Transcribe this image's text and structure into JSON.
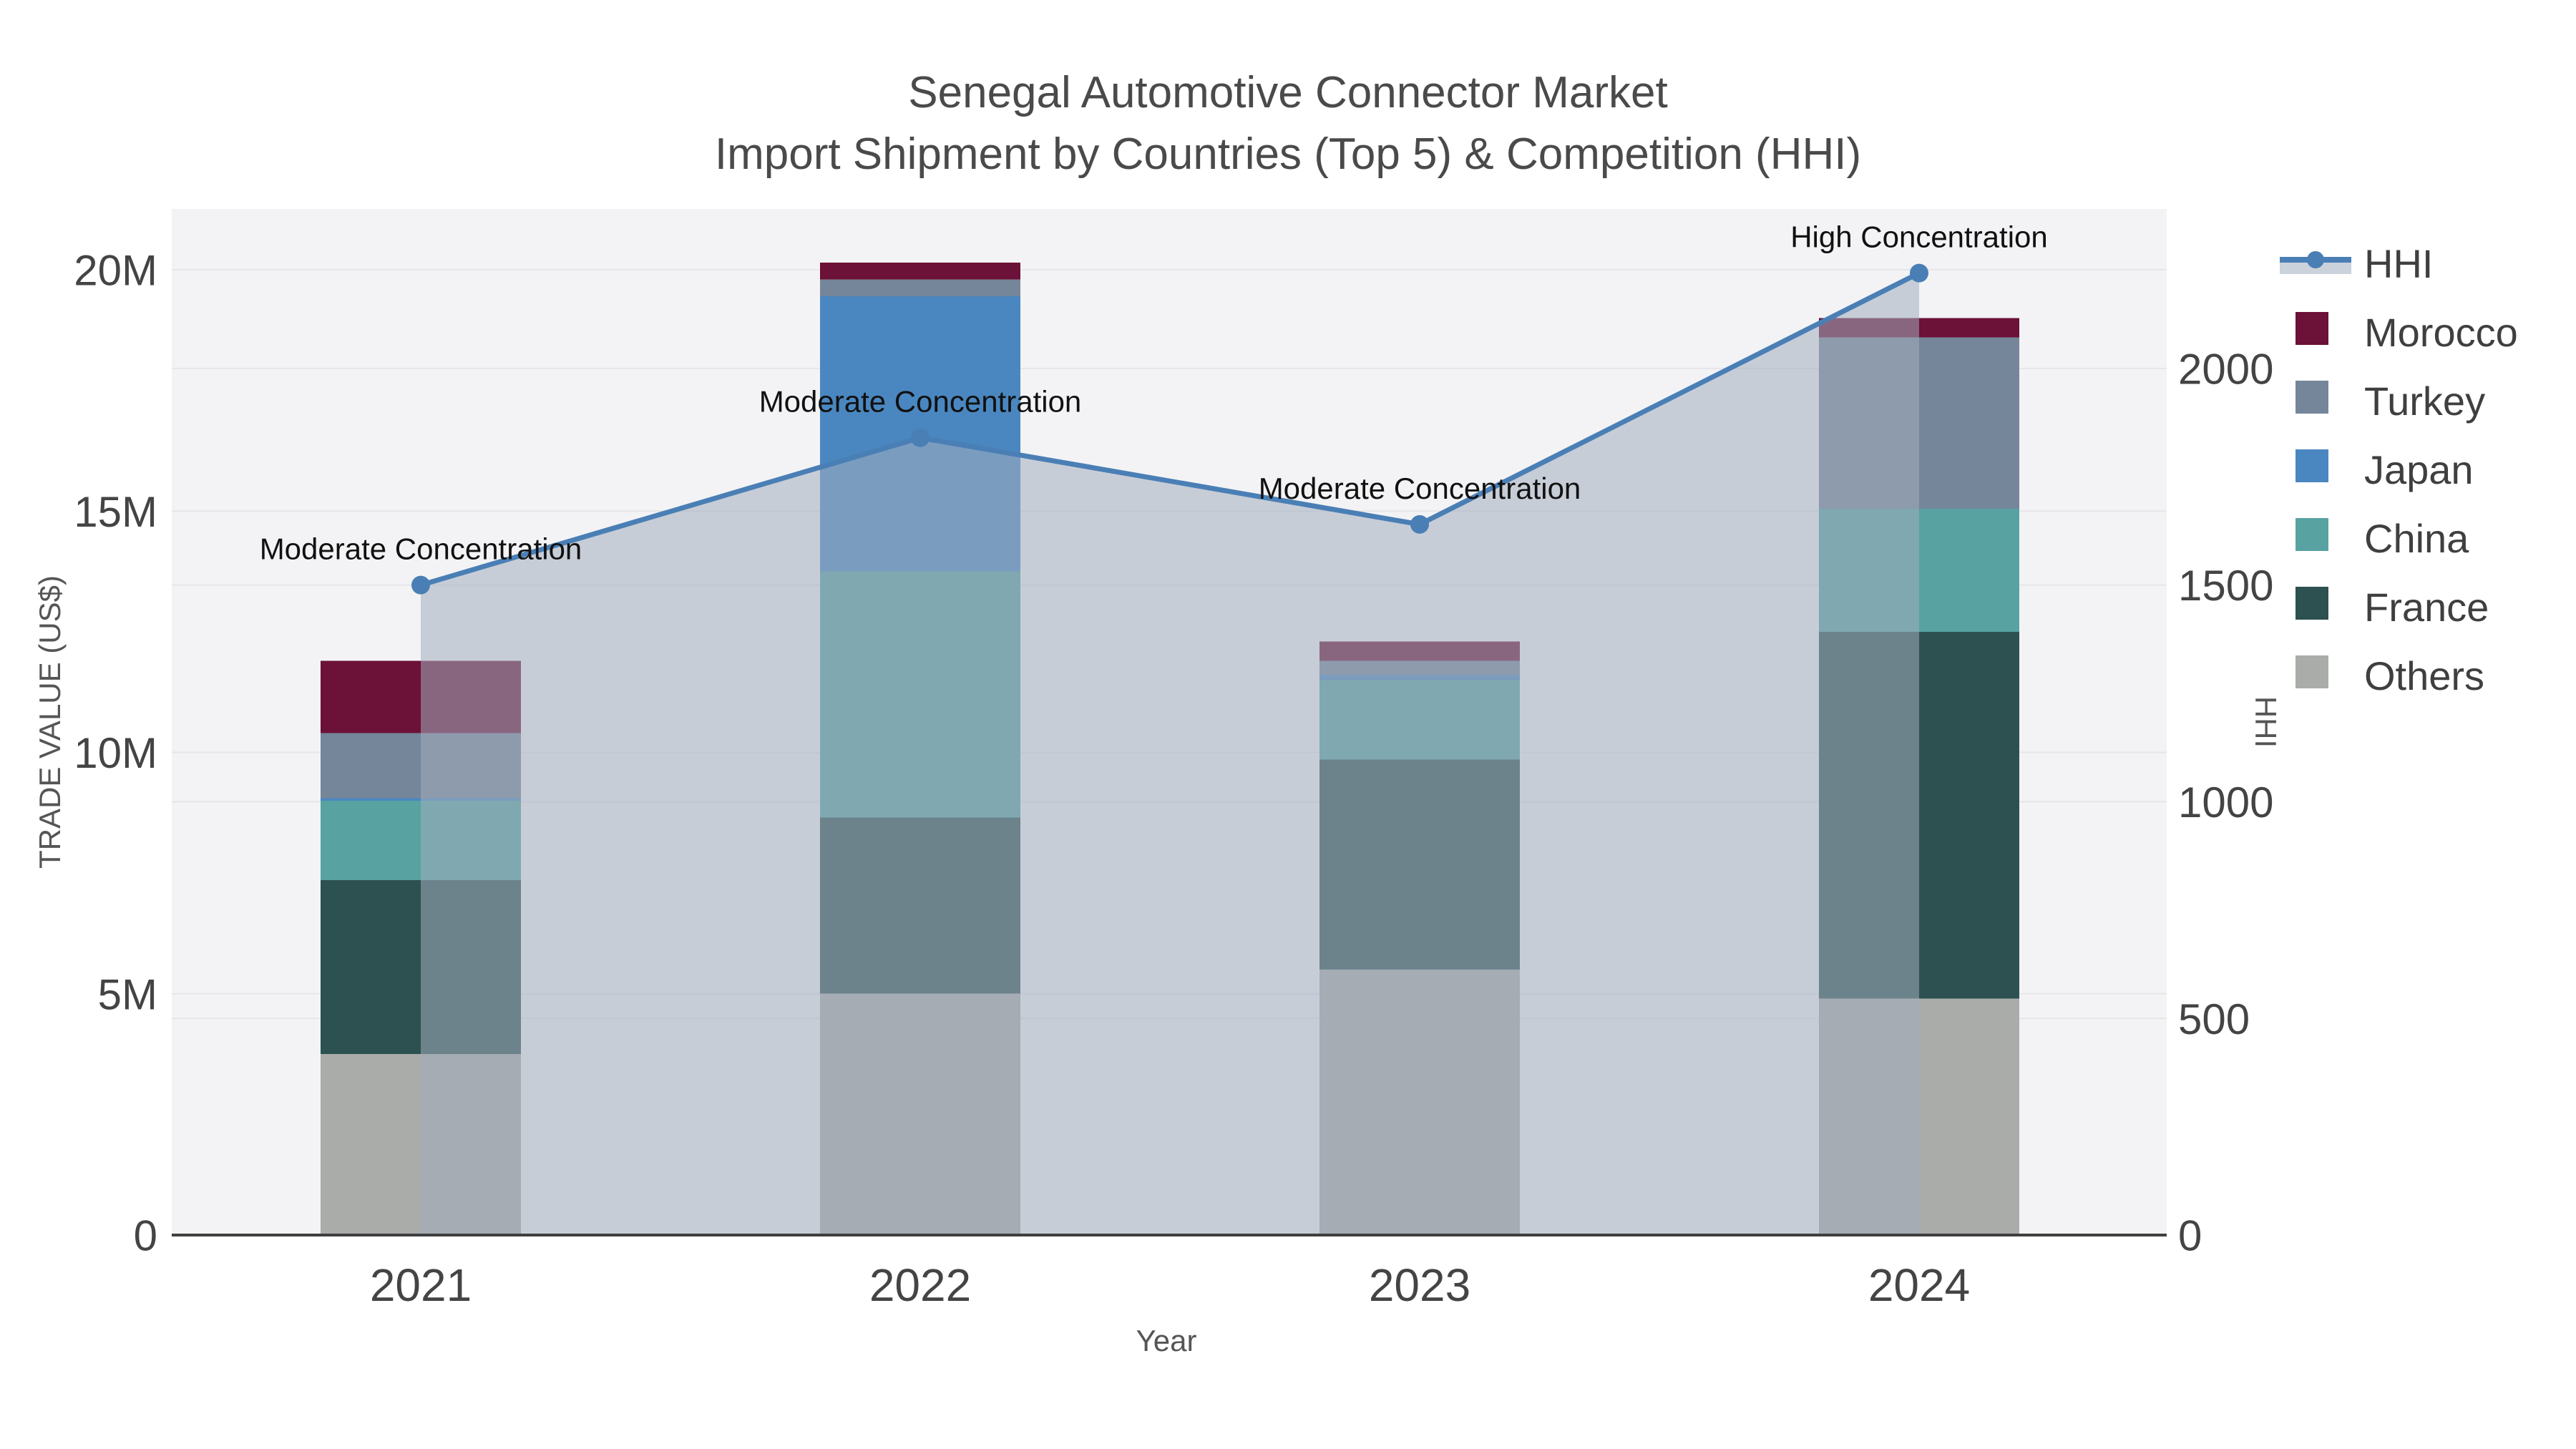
{
  "chart_data": {
    "type": "bar",
    "subtype": "stacked-bars-with-line-area-overlay",
    "title": "Senegal Automotive Connector Market",
    "subtitle": "Import Shipment by Countries (Top 5) & Competition (HHI)",
    "xlabel": "Year",
    "ylabel_left": "TRADE VALUE (US$)",
    "ylabel_right": "HHI",
    "categories": [
      "2021",
      "2022",
      "2023",
      "2024"
    ],
    "bar_values_unit": "US$ millions",
    "bar_series": [
      {
        "name": "Others",
        "color": "#a9aca8",
        "values": [
          3.75,
          5.0,
          5.5,
          4.9
        ]
      },
      {
        "name": "France",
        "color": "#2c5150",
        "values": [
          3.6,
          3.65,
          4.35,
          7.6
        ]
      },
      {
        "name": "China",
        "color": "#58a2a2",
        "values": [
          1.65,
          5.1,
          1.65,
          2.55
        ]
      },
      {
        "name": "Japan",
        "color": "#4a87c0",
        "values": [
          0.05,
          5.7,
          0.1,
          0.0
        ]
      },
      {
        "name": "Turkey",
        "color": "#75869a",
        "values": [
          1.35,
          0.35,
          0.3,
          3.55
        ]
      },
      {
        "name": "Morocco",
        "color": "#6c1137",
        "values": [
          1.5,
          0.35,
          0.4,
          0.4
        ]
      }
    ],
    "line_series": {
      "name": "HHI",
      "color": "#4a7fb5",
      "area_fill": "rgba(163,173,190,0.55)",
      "values": [
        1500,
        1840,
        1640,
        2220
      ]
    },
    "annotations": [
      {
        "category": "2021",
        "text": "Moderate Concentration"
      },
      {
        "category": "2022",
        "text": "Moderate Concentration"
      },
      {
        "category": "2023",
        "text": "Moderate Concentration"
      },
      {
        "category": "2024",
        "text": "High Concentration"
      }
    ],
    "yticks_left": {
      "values": [
        0,
        5,
        10,
        15,
        20
      ],
      "labels": [
        "0",
        "5M",
        "10M",
        "15M",
        "20M"
      ]
    },
    "yticks_right": {
      "values": [
        0,
        500,
        1000,
        1500,
        2000
      ],
      "labels": [
        "0",
        "500",
        "1000",
        "1500",
        "2000"
      ]
    },
    "ylim_left": [
      0,
      21.26
    ],
    "ylim_right": [
      0,
      2368
    ],
    "grid": true,
    "legend": {
      "position": "right",
      "items": [
        "HHI",
        "Morocco",
        "Turkey",
        "Japan",
        "China",
        "France",
        "Others"
      ]
    }
  },
  "style": {
    "plot_bg": "#f3f3f5",
    "grid_color": "#e6e6ea",
    "axis_line_color": "#3f3f3f",
    "tick_text_color": "#444444",
    "title_text_color": "#4a4a4a",
    "annotation_text_color": "#111111"
  }
}
